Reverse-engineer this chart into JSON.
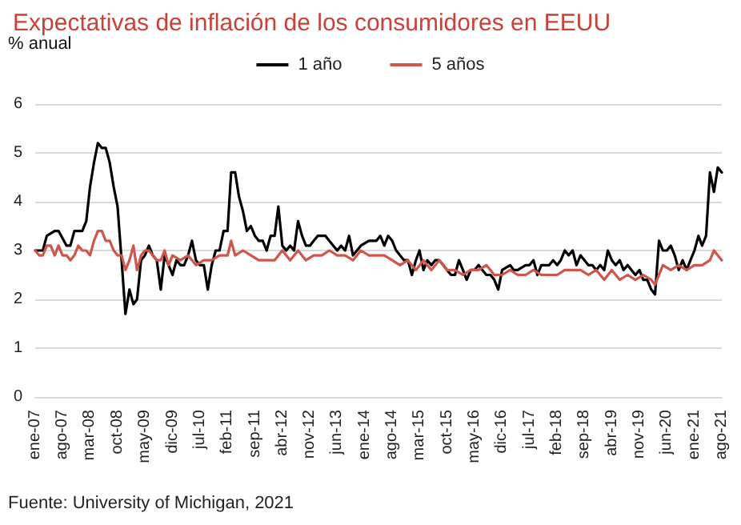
{
  "chart_data": {
    "type": "line",
    "title": "Expectativas de inflación de los consumidores en EEUU",
    "ylabel": "% anual",
    "annotations": [
      "Fuente: University of Michigan, 2021"
    ],
    "xlim": [
      "2007-01",
      "2021-08"
    ],
    "xticks": [
      {
        "value": "2007-01",
        "label": "ene-07"
      },
      {
        "value": "2007-08",
        "label": "ago-07"
      },
      {
        "value": "2008-03",
        "label": "mar-08"
      },
      {
        "value": "2008-10",
        "label": "oct-08"
      },
      {
        "value": "2009-05",
        "label": "may-09"
      },
      {
        "value": "2009-12",
        "label": "dic-09"
      },
      {
        "value": "2010-07",
        "label": "jul-10"
      },
      {
        "value": "2011-02",
        "label": "feb-11"
      },
      {
        "value": "2011-09",
        "label": "sep-11"
      },
      {
        "value": "2012-04",
        "label": "abr-12"
      },
      {
        "value": "2012-11",
        "label": "nov-12"
      },
      {
        "value": "2013-06",
        "label": "jun-13"
      },
      {
        "value": "2014-01",
        "label": "ene-14"
      },
      {
        "value": "2014-08",
        "label": "ago-14"
      },
      {
        "value": "2015-03",
        "label": "mar-15"
      },
      {
        "value": "2015-10",
        "label": "oct-15"
      },
      {
        "value": "2016-05",
        "label": "may-16"
      },
      {
        "value": "2016-12",
        "label": "dic-16"
      },
      {
        "value": "2017-07",
        "label": "jul-17"
      },
      {
        "value": "2018-02",
        "label": "feb-18"
      },
      {
        "value": "2018-09",
        "label": "sep-18"
      },
      {
        "value": "2019-04",
        "label": "abr-19"
      },
      {
        "value": "2019-11",
        "label": "nov-19"
      },
      {
        "value": "2020-06",
        "label": "jun-20"
      },
      {
        "value": "2021-01",
        "label": "ene-21"
      },
      {
        "value": "2021-08",
        "label": "ago-21"
      }
    ],
    "ylim": [
      0,
      6
    ],
    "yticks": [
      0,
      1,
      2,
      3,
      4,
      5,
      6
    ],
    "grid": "y",
    "legend": "top",
    "marker": "none",
    "line_style": "solid",
    "series": [
      {
        "name": "1 año",
        "color": "#000000",
        "x": [
          "2007-01",
          "2007-03",
          "2007-04",
          "2007-06",
          "2007-07",
          "2007-09",
          "2007-10",
          "2007-11",
          "2007-12",
          "2008-01",
          "2008-02",
          "2008-03",
          "2008-04",
          "2008-05",
          "2008-06",
          "2008-07",
          "2008-08",
          "2008-09",
          "2008-10",
          "2008-11",
          "2008-12",
          "2009-01",
          "2009-02",
          "2009-03",
          "2009-04",
          "2009-05",
          "2009-06",
          "2009-07",
          "2009-08",
          "2009-09",
          "2009-10",
          "2009-11",
          "2009-12",
          "2010-01",
          "2010-02",
          "2010-03",
          "2010-04",
          "2010-05",
          "2010-06",
          "2010-07",
          "2010-08",
          "2010-09",
          "2010-10",
          "2010-11",
          "2010-12",
          "2011-01",
          "2011-02",
          "2011-03",
          "2011-04",
          "2011-05",
          "2011-06",
          "2011-07",
          "2011-08",
          "2011-09",
          "2011-10",
          "2011-11",
          "2011-12",
          "2012-01",
          "2012-02",
          "2012-03",
          "2012-04",
          "2012-05",
          "2012-06",
          "2012-07",
          "2012-08",
          "2012-09",
          "2012-10",
          "2012-11",
          "2012-12",
          "2013-01",
          "2013-03",
          "2013-05",
          "2013-06",
          "2013-07",
          "2013-08",
          "2013-09",
          "2013-10",
          "2013-11",
          "2013-12",
          "2014-02",
          "2014-04",
          "2014-05",
          "2014-06",
          "2014-07",
          "2014-08",
          "2014-09",
          "2014-10",
          "2014-11",
          "2014-12",
          "2015-01",
          "2015-02",
          "2015-03",
          "2015-04",
          "2015-05",
          "2015-06",
          "2015-07",
          "2015-08",
          "2015-09",
          "2015-10",
          "2015-11",
          "2015-12",
          "2016-01",
          "2016-02",
          "2016-03",
          "2016-04",
          "2016-05",
          "2016-06",
          "2016-07",
          "2016-08",
          "2016-09",
          "2016-10",
          "2016-11",
          "2016-12",
          "2017-02",
          "2017-03",
          "2017-04",
          "2017-06",
          "2017-07",
          "2017-08",
          "2017-09",
          "2017-10",
          "2017-11",
          "2017-12",
          "2018-01",
          "2018-02",
          "2018-03",
          "2018-04",
          "2018-05",
          "2018-06",
          "2018-07",
          "2018-08",
          "2018-09",
          "2018-10",
          "2018-11",
          "2018-12",
          "2019-01",
          "2019-02",
          "2019-03",
          "2019-04",
          "2019-05",
          "2019-06",
          "2019-07",
          "2019-08",
          "2019-09",
          "2019-10",
          "2019-11",
          "2019-12",
          "2020-01",
          "2020-02",
          "2020-03",
          "2020-04",
          "2020-05",
          "2020-06",
          "2020-07",
          "2020-08",
          "2020-09",
          "2020-10",
          "2020-11",
          "2020-12",
          "2021-01",
          "2021-02",
          "2021-03",
          "2021-04",
          "2021-05",
          "2021-06",
          "2021-07",
          "2021-08"
        ],
        "values": [
          3.0,
          3.0,
          3.3,
          3.4,
          3.4,
          3.1,
          3.1,
          3.4,
          3.4,
          3.4,
          3.6,
          4.3,
          4.8,
          5.2,
          5.1,
          5.1,
          4.8,
          4.3,
          3.9,
          2.8,
          1.7,
          2.2,
          1.9,
          2.0,
          2.8,
          2.9,
          3.1,
          2.9,
          2.8,
          2.2,
          2.9,
          2.7,
          2.5,
          2.8,
          2.7,
          2.7,
          2.9,
          3.2,
          2.8,
          2.7,
          2.7,
          2.2,
          2.7,
          3.0,
          3.0,
          3.4,
          3.4,
          4.6,
          4.6,
          4.1,
          3.8,
          3.4,
          3.5,
          3.3,
          3.2,
          3.2,
          3.0,
          3.3,
          3.3,
          3.9,
          3.1,
          3.0,
          3.1,
          3.0,
          3.6,
          3.3,
          3.1,
          3.1,
          3.2,
          3.3,
          3.3,
          3.1,
          3.0,
          3.1,
          3.0,
          3.3,
          2.9,
          3.0,
          3.1,
          3.2,
          3.2,
          3.3,
          3.1,
          3.3,
          3.2,
          3.0,
          2.9,
          2.8,
          2.8,
          2.5,
          2.8,
          3.0,
          2.6,
          2.8,
          2.7,
          2.8,
          2.8,
          2.7,
          2.6,
          2.5,
          2.5,
          2.8,
          2.6,
          2.4,
          2.6,
          2.6,
          2.7,
          2.6,
          2.5,
          2.5,
          2.4,
          2.2,
          2.6,
          2.7,
          2.6,
          2.6,
          2.7,
          2.7,
          2.8,
          2.5,
          2.7,
          2.7,
          2.7,
          2.8,
          2.7,
          2.8,
          3.0,
          2.9,
          3.0,
          2.7,
          2.9,
          2.8,
          2.7,
          2.7,
          2.6,
          2.7,
          2.6,
          3.0,
          2.8,
          2.7,
          2.8,
          2.6,
          2.7,
          2.6,
          2.5,
          2.6,
          2.4,
          2.4,
          2.2,
          2.1,
          3.2,
          3.0,
          3.0,
          3.1,
          2.9,
          2.6,
          2.8,
          2.6,
          2.8,
          3.0,
          3.3,
          3.1,
          3.3,
          4.6,
          4.2,
          4.7,
          4.6
        ]
      },
      {
        "name": "5 años",
        "color": "#d0554a",
        "x": [
          "2007-01",
          "2007-02",
          "2007-03",
          "2007-04",
          "2007-05",
          "2007-06",
          "2007-07",
          "2007-08",
          "2007-09",
          "2007-10",
          "2007-11",
          "2007-12",
          "2008-01",
          "2008-02",
          "2008-03",
          "2008-04",
          "2008-05",
          "2008-06",
          "2008-07",
          "2008-08",
          "2008-09",
          "2008-10",
          "2008-11",
          "2008-12",
          "2009-01",
          "2009-02",
          "2009-03",
          "2009-04",
          "2009-05",
          "2009-06",
          "2009-07",
          "2009-08",
          "2009-09",
          "2009-10",
          "2009-11",
          "2009-12",
          "2010-02",
          "2010-04",
          "2010-06",
          "2010-08",
          "2010-10",
          "2010-12",
          "2011-02",
          "2011-03",
          "2011-04",
          "2011-06",
          "2011-08",
          "2011-10",
          "2011-12",
          "2012-02",
          "2012-04",
          "2012-06",
          "2012-08",
          "2012-10",
          "2012-12",
          "2013-02",
          "2013-04",
          "2013-06",
          "2013-08",
          "2013-10",
          "2013-12",
          "2014-02",
          "2014-04",
          "2014-06",
          "2014-08",
          "2014-10",
          "2014-12",
          "2015-02",
          "2015-04",
          "2015-06",
          "2015-08",
          "2015-10",
          "2015-12",
          "2016-02",
          "2016-04",
          "2016-06",
          "2016-08",
          "2016-10",
          "2016-12",
          "2017-02",
          "2017-04",
          "2017-06",
          "2017-08",
          "2017-10",
          "2017-12",
          "2018-02",
          "2018-04",
          "2018-06",
          "2018-08",
          "2018-10",
          "2018-12",
          "2019-02",
          "2019-04",
          "2019-06",
          "2019-08",
          "2019-10",
          "2019-12",
          "2020-02",
          "2020-03",
          "2020-05",
          "2020-07",
          "2020-09",
          "2020-11",
          "2021-01",
          "2021-03",
          "2021-05",
          "2021-06",
          "2021-08"
        ],
        "values": [
          3.0,
          2.9,
          2.9,
          3.1,
          3.1,
          2.9,
          3.1,
          2.9,
          2.9,
          2.8,
          2.9,
          3.1,
          3.0,
          3.0,
          2.9,
          3.2,
          3.4,
          3.4,
          3.2,
          3.2,
          3.0,
          2.9,
          2.9,
          2.6,
          2.8,
          3.1,
          2.6,
          2.9,
          3.0,
          3.0,
          2.9,
          2.8,
          2.8,
          3.0,
          2.7,
          2.9,
          2.8,
          2.9,
          2.7,
          2.8,
          2.8,
          2.9,
          2.9,
          3.2,
          2.9,
          3.0,
          2.9,
          2.8,
          2.8,
          2.8,
          3.0,
          2.8,
          3.0,
          2.8,
          2.9,
          2.9,
          3.0,
          2.9,
          2.9,
          2.8,
          3.0,
          2.9,
          2.9,
          2.9,
          2.8,
          2.7,
          2.8,
          2.6,
          2.8,
          2.6,
          2.8,
          2.6,
          2.6,
          2.5,
          2.6,
          2.6,
          2.7,
          2.5,
          2.5,
          2.6,
          2.5,
          2.5,
          2.6,
          2.5,
          2.5,
          2.5,
          2.6,
          2.6,
          2.6,
          2.5,
          2.6,
          2.4,
          2.6,
          2.4,
          2.5,
          2.4,
          2.5,
          2.4,
          2.3,
          2.7,
          2.6,
          2.7,
          2.6,
          2.7,
          2.7,
          2.8,
          3.0,
          2.8
        ]
      }
    ]
  }
}
